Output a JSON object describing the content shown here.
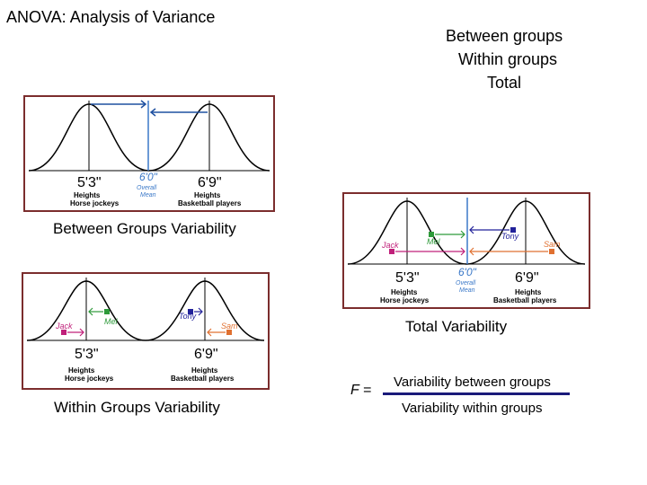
{
  "title": "ANOVA: Analysis of Variance",
  "legend": [
    "Between groups",
    "Within groups",
    "Total"
  ],
  "captions": {
    "between": "Between Groups Variability",
    "within": "Within Groups Variability",
    "total": "Total Variability"
  },
  "formula": {
    "f_label": "F =",
    "numerator": "Variability between groups",
    "denominator": "Variability within groups"
  },
  "panel_labels": {
    "mean1": "5'3\"",
    "mean2": "6'9\"",
    "overall": "6'0\"",
    "overall_sub1": "Overall",
    "overall_sub2": "Mean",
    "group1_a": "Heights",
    "group1_b": "Horse jockeys",
    "group2_a": "Heights",
    "group2_b": "Basketball players",
    "jack": "Jack",
    "mel": "Mel",
    "tony": "Tony",
    "sam": "Sam"
  },
  "colors": {
    "frame": "#7b2d2d",
    "arrow_blue": "#1e50a0",
    "overall_blue": "#3a78c8",
    "jack": "#c0207a",
    "mel": "#2e9a3a",
    "tony": "#22229a",
    "sam": "#e07030",
    "formula_bar": "#1a1a7a"
  }
}
